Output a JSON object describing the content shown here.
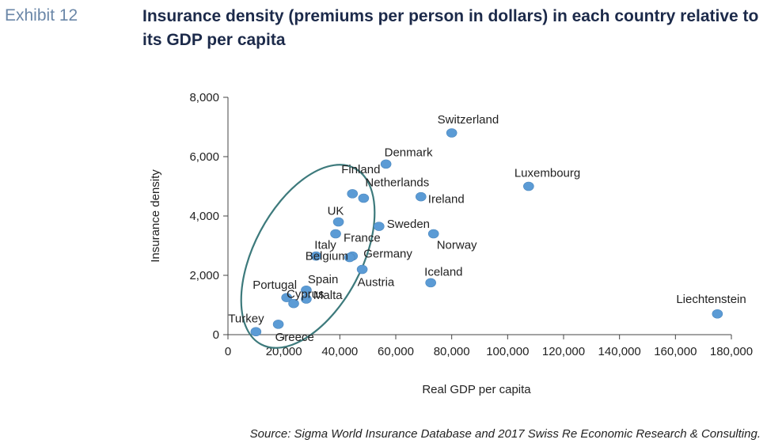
{
  "header": {
    "exhibit": "Exhibit 12",
    "title": "Insurance density (premiums per person in dollars) in each country relative to its GDP per capita"
  },
  "footer": {
    "source": "Source: Sigma World Insurance Database and 2017 Swiss Re Economic Research & Consulting."
  },
  "colors": {
    "point": "#5b9bd5",
    "ellipse": "#3d7a7c",
    "axis": "#444444"
  },
  "chart_data": {
    "type": "scatter",
    "title": "",
    "xlabel": "Real GDP per capita",
    "ylabel": "Insurance density",
    "xlim": [
      0,
      180000
    ],
    "ylim": [
      0,
      8000
    ],
    "xticks": [
      0,
      20000,
      40000,
      60000,
      80000,
      100000,
      120000,
      140000,
      160000,
      180000
    ],
    "yticks": [
      0,
      2000,
      4000,
      6000,
      8000
    ],
    "xtick_labels": [
      "0",
      "20,000",
      "40,000",
      "60,000",
      "80,000",
      "100,000",
      "120,000",
      "140,000",
      "160,000",
      "180,000"
    ],
    "ytick_labels": [
      "0",
      "2,000",
      "4,000",
      "6,000",
      "8,000"
    ],
    "grid": false,
    "legend": "none",
    "points": [
      {
        "label": "Switzerland",
        "x": 80000,
        "y": 6800
      },
      {
        "label": "Denmark",
        "x": 56500,
        "y": 5750
      },
      {
        "label": "Luxembourg",
        "x": 107500,
        "y": 5000
      },
      {
        "label": "Finland",
        "x": 44500,
        "y": 4750
      },
      {
        "label": "Netherlands",
        "x": 48500,
        "y": 4600
      },
      {
        "label": "Ireland",
        "x": 69000,
        "y": 4650
      },
      {
        "label": "UK",
        "x": 39500,
        "y": 3800
      },
      {
        "label": "Sweden",
        "x": 54000,
        "y": 3650
      },
      {
        "label": "France",
        "x": 38500,
        "y": 3400
      },
      {
        "label": "Norway",
        "x": 73500,
        "y": 3400
      },
      {
        "label": "Italy",
        "x": 31500,
        "y": 2650
      },
      {
        "label": "Germany",
        "x": 44500,
        "y": 2650
      },
      {
        "label": "Belgium",
        "x": 43500,
        "y": 2600
      },
      {
        "label": "Austria",
        "x": 48000,
        "y": 2200
      },
      {
        "label": "Iceland",
        "x": 72500,
        "y": 1750
      },
      {
        "label": "Spain",
        "x": 28000,
        "y": 1500
      },
      {
        "label": "Portugal",
        "x": 21000,
        "y": 1250
      },
      {
        "label": "Malta",
        "x": 28000,
        "y": 1200
      },
      {
        "label": "Cyprus",
        "x": 23500,
        "y": 1050
      },
      {
        "label": "Greece",
        "x": 18000,
        "y": 350
      },
      {
        "label": "Turkey",
        "x": 10000,
        "y": 100
      },
      {
        "label": "Liechtenstein",
        "x": 175000,
        "y": 700
      }
    ]
  }
}
